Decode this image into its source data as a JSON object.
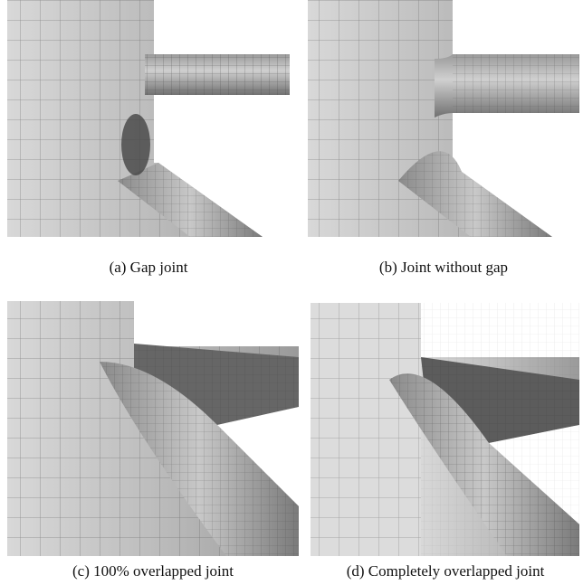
{
  "figure": {
    "panels": [
      {
        "caption": "(a) Gap joint"
      },
      {
        "caption": "(b) Joint without gap"
      },
      {
        "caption": "(c) 100% overlapped joint"
      },
      {
        "caption": "(d) Completely overlapped joint"
      }
    ]
  }
}
